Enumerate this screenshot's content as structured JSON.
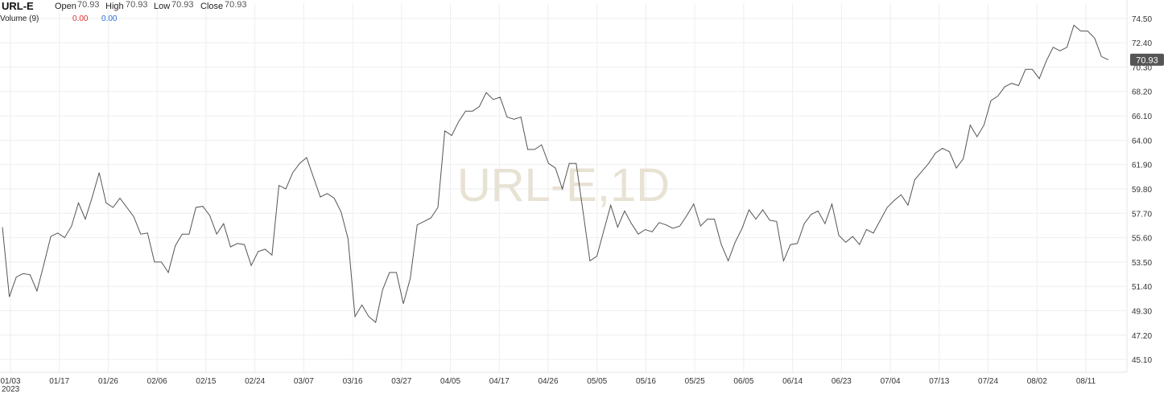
{
  "header": {
    "symbol": "URL-E",
    "open_label": "Open",
    "open_value": "70.93",
    "high_label": "High",
    "high_value": "70.93",
    "low_label": "Low",
    "low_value": "70.93",
    "close_label": "Close",
    "close_value": "70.93",
    "volume_label": "Volume (9)",
    "volume_value_1": "0.00",
    "volume_value_2": "0.00"
  },
  "watermark": "URL-E,1D",
  "last_price_label": "70.93",
  "colors": {
    "line": "#555555",
    "grid": "#eeeeee",
    "price_tag": "#555555",
    "watermark": "#e8e2d4"
  },
  "chart_data": {
    "type": "line",
    "title": "URL-E",
    "y_ticks": [
      "74.50",
      "72.40",
      "70.30",
      "68.20",
      "66.10",
      "64.00",
      "61.90",
      "59.80",
      "57.70",
      "55.60",
      "53.50",
      "51.40",
      "49.30",
      "47.20",
      "45.10"
    ],
    "ylim": [
      44.0,
      75.8
    ],
    "x_ticks": [
      "01/03",
      "01/17",
      "01/26",
      "02/06",
      "02/15",
      "02/24",
      "03/07",
      "03/16",
      "03/27",
      "04/05",
      "04/17",
      "04/26",
      "05/05",
      "05/16",
      "05/25",
      "06/05",
      "06/14",
      "06/23",
      "07/04",
      "07/13",
      "07/24",
      "08/02",
      "08/11"
    ],
    "x_tick_sublabel": "2023",
    "last_value": 70.93,
    "series": [
      {
        "values": [
          56.5,
          50.5,
          52.2,
          52.5,
          52.4,
          51.0,
          53.3,
          55.7,
          56.0,
          55.6,
          56.6,
          58.6,
          57.2,
          59.1,
          61.2,
          58.6,
          58.2,
          59.0,
          58.2,
          57.4,
          55.9,
          56.0,
          53.5,
          53.5,
          52.6,
          54.9,
          55.9,
          55.9,
          58.2,
          58.3,
          57.5,
          55.9,
          56.8,
          54.8,
          55.1,
          55.0,
          53.2,
          54.4,
          54.6,
          54.1,
          60.1,
          59.8,
          61.2,
          62.0,
          62.5,
          60.8,
          59.1,
          59.4,
          59.0,
          57.8,
          55.5,
          48.8,
          49.8,
          48.8,
          48.3,
          51.1,
          52.6,
          52.6,
          49.9,
          52.1,
          56.7,
          57.0,
          57.3,
          58.2,
          64.8,
          64.4,
          65.6,
          66.5,
          66.5,
          66.9,
          68.1,
          67.5,
          67.7,
          66.0,
          65.8,
          66.0,
          63.2,
          63.2,
          63.6,
          62.0,
          61.6,
          59.8,
          62.0,
          62.0,
          57.8,
          53.6,
          54.0,
          56.2,
          58.4,
          56.5,
          57.9,
          56.8,
          55.9,
          56.3,
          56.1,
          56.9,
          56.7,
          56.4,
          56.6,
          57.5,
          58.5,
          56.6,
          57.2,
          57.2,
          55.0,
          53.6,
          55.2,
          56.4,
          58.0,
          57.2,
          58.0,
          57.1,
          57.0,
          53.6,
          55.0,
          55.1,
          56.8,
          57.6,
          57.9,
          56.8,
          58.5,
          55.8,
          55.2,
          55.7,
          55.0,
          56.3,
          56.0,
          57.1,
          58.2,
          58.8,
          59.3,
          58.4,
          60.6,
          61.3,
          62.0,
          62.9,
          63.3,
          63.0,
          61.6,
          62.4,
          65.3,
          64.3,
          65.3,
          67.4,
          67.8,
          68.6,
          68.9,
          68.7,
          70.1,
          70.1,
          69.3,
          70.8,
          72.0,
          71.7,
          72.0,
          73.9,
          73.4,
          73.4,
          72.8,
          71.2,
          70.93
        ]
      }
    ]
  }
}
